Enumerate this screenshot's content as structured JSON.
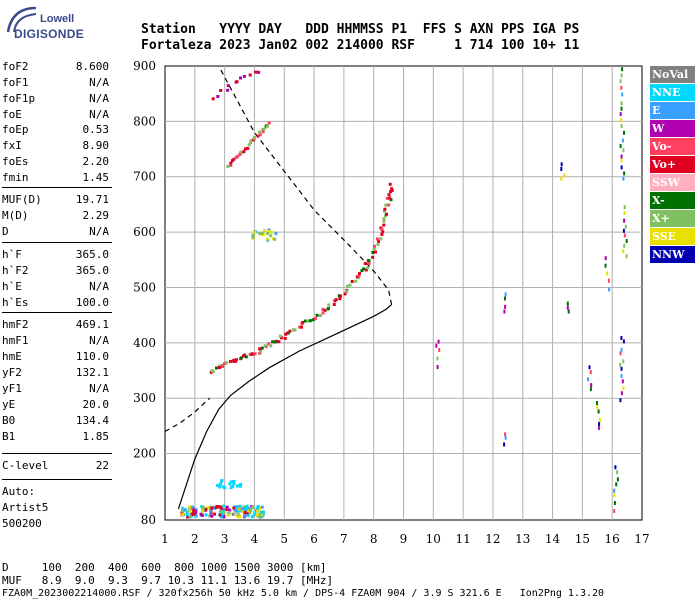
{
  "logo": {
    "top": "Lowell",
    "bottom": "DIGISONDE"
  },
  "header": {
    "line1": "Station   YYYY DAY   DDD HHMMSS P1  FFS S AXN PPS IGA PS",
    "line2": "Fortaleza 2023 Jan02 002 214000 RSF     1 714 100 10+ 11"
  },
  "params": [
    {
      "label": "foF2",
      "value": "8.600"
    },
    {
      "label": "foF1",
      "value": "N/A"
    },
    {
      "label": "foF1p",
      "value": "N/A"
    },
    {
      "label": "foE",
      "value": "N/A"
    },
    {
      "label": "foEp",
      "value": "0.53"
    },
    {
      "label": "fxI",
      "value": "8.90"
    },
    {
      "label": "foEs",
      "value": "2.20"
    },
    {
      "label": "fmin",
      "value": "1.45"
    },
    {
      "label": "MUF(D)",
      "value": "19.71"
    },
    {
      "label": "M(D)",
      "value": "2.29"
    },
    {
      "label": "D",
      "value": "N/A"
    },
    {
      "label": "h`F",
      "value": "365.0"
    },
    {
      "label": "h`F2",
      "value": "365.0"
    },
    {
      "label": "h`E",
      "value": "N/A"
    },
    {
      "label": "h`Es",
      "value": "100.0"
    },
    {
      "label": "hmF2",
      "value": "469.1"
    },
    {
      "label": "hmF1",
      "value": "N/A"
    },
    {
      "label": "hmE",
      "value": "110.0"
    },
    {
      "label": "yF2",
      "value": "132.1"
    },
    {
      "label": "yF1",
      "value": "N/A"
    },
    {
      "label": "yE",
      "value": "20.0"
    },
    {
      "label": "B0",
      "value": "134.4"
    },
    {
      "label": "B1",
      "value": "1.85"
    },
    {
      "label": "C-level",
      "value": "22"
    }
  ],
  "auto": {
    "line1": "Auto:",
    "line2": "Artist5",
    "line3": "500200"
  },
  "legend": [
    {
      "label": "NoVal",
      "color": "#808080"
    },
    {
      "label": "NNE",
      "color": "#00d8ff"
    },
    {
      "label": "E",
      "color": "#3aa0ff"
    },
    {
      "label": "W",
      "color": "#b000b0"
    },
    {
      "label": "Vo-",
      "color": "#ff4060"
    },
    {
      "label": "Vo+",
      "color": "#e00020"
    },
    {
      "label": "SSW",
      "color": "#ffb0c0"
    },
    {
      "label": "X-",
      "color": "#007000"
    },
    {
      "label": "X+",
      "color": "#80c060"
    },
    {
      "label": "SSE",
      "color": "#e8e000"
    },
    {
      "label": "NNW",
      "color": "#0000b0"
    }
  ],
  "bottom": {
    "line1": "D     100  200  400  600  800 1000 1500 3000 [km]",
    "line2": "MUF   8.9  9.0  9.3  9.7 10.3 11.1 13.6 19.7 [MHz]",
    "line3": "FZA0M_2023002214000.RSF / 320fx256h 50 kHz 5.0 km / DPS-4 FZA0M 904 / 3.9 S 321.6 E   Ion2Png 1.3.20"
  },
  "chart_data": {
    "type": "scatter",
    "xlim": [
      1,
      17
    ],
    "ylim": [
      80,
      900
    ],
    "xticks": [
      "1",
      "2",
      "3",
      "4",
      "5",
      "6",
      "7",
      "8",
      "9",
      "10",
      "11",
      "12",
      "13",
      "14",
      "15",
      "16",
      "17"
    ],
    "yticks": [
      "80",
      "200",
      "300",
      "400",
      "500",
      "600",
      "700",
      "800",
      "900"
    ],
    "grid": true,
    "profile_solid": [
      [
        1.45,
        100
      ],
      [
        2.0,
        190
      ],
      [
        2.4,
        240
      ],
      [
        2.8,
        280
      ],
      [
        3.2,
        305
      ],
      [
        3.8,
        330
      ],
      [
        4.5,
        355
      ],
      [
        5.5,
        385
      ],
      [
        6.5,
        410
      ],
      [
        7.3,
        430
      ],
      [
        8.0,
        448
      ],
      [
        8.4,
        460
      ],
      [
        8.6,
        469
      ]
    ],
    "profile_dashed": [
      [
        1.0,
        240
      ],
      [
        1.5,
        255
      ],
      [
        2.0,
        275
      ],
      [
        2.5,
        300
      ],
      [
        8.6,
        469
      ],
      [
        8.5,
        495
      ],
      [
        8.0,
        530
      ],
      [
        7.2,
        575
      ],
      [
        6.0,
        640
      ],
      [
        5.0,
        710
      ],
      [
        4.0,
        780
      ],
      [
        3.3,
        850
      ],
      [
        2.8,
        900
      ]
    ],
    "f2_trace": [
      [
        2.5,
        350
      ],
      [
        3.0,
        365
      ],
      [
        3.5,
        375
      ],
      [
        4.0,
        385
      ],
      [
        4.5,
        400
      ],
      [
        5.0,
        415
      ],
      [
        5.5,
        432
      ],
      [
        6.0,
        450
      ],
      [
        6.5,
        470
      ],
      [
        7.0,
        495
      ],
      [
        7.5,
        525
      ],
      [
        7.8,
        550
      ],
      [
        8.1,
        585
      ],
      [
        8.3,
        620
      ],
      [
        8.45,
        660
      ],
      [
        8.55,
        690
      ]
    ],
    "upper_trace": [
      [
        3.1,
        720
      ],
      [
        3.4,
        740
      ],
      [
        3.7,
        755
      ],
      [
        4.0,
        775
      ],
      [
        4.3,
        790
      ],
      [
        4.5,
        800
      ]
    ],
    "top_trace": [
      [
        2.6,
        845
      ],
      [
        3.0,
        860
      ],
      [
        3.4,
        875
      ],
      [
        3.8,
        888
      ],
      [
        4.2,
        895
      ]
    ],
    "es_band": [
      [
        1.5,
        95
      ],
      [
        2.0,
        95
      ],
      [
        2.5,
        97
      ],
      [
        3.0,
        98
      ],
      [
        3.5,
        100
      ],
      [
        4.0,
        100
      ],
      [
        1.6,
        105
      ],
      [
        2.2,
        107
      ],
      [
        2.8,
        105
      ]
    ]
  }
}
